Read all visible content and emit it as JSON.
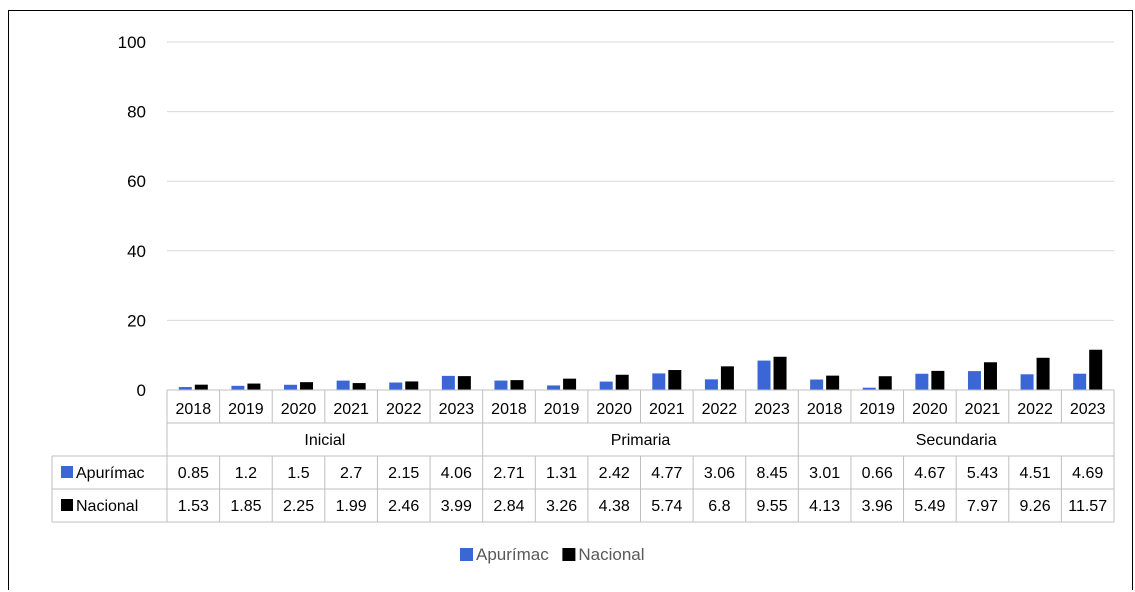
{
  "chart_data": {
    "type": "bar",
    "groups": [
      "Inicial",
      "Primaria",
      "Secundaria"
    ],
    "years": [
      "2018",
      "2019",
      "2020",
      "2021",
      "2022",
      "2023"
    ],
    "series": [
      {
        "name": "Apurímac",
        "color": "#3a66d6",
        "values": [
          "0.85",
          "1.2",
          "1.5",
          "2.7",
          "2.15",
          "4.06",
          "2.71",
          "1.31",
          "2.42",
          "4.77",
          "3.06",
          "8.45",
          "3.01",
          "0.66",
          "4.67",
          "5.43",
          "4.51",
          "4.69"
        ]
      },
      {
        "name": "Nacional",
        "color": "#000000",
        "values": [
          "1.53",
          "1.85",
          "2.25",
          "1.99",
          "2.46",
          "3.99",
          "2.84",
          "3.26",
          "4.38",
          "5.74",
          "6.8",
          "9.55",
          "4.13",
          "3.96",
          "5.49",
          "7.97",
          "9.26",
          "11.57"
        ]
      }
    ],
    "yticks": [
      "0",
      "20",
      "40",
      "60",
      "80",
      "100"
    ],
    "ylim": [
      0,
      100
    ],
    "grid": true,
    "legend": "bottom",
    "data_table": true
  }
}
